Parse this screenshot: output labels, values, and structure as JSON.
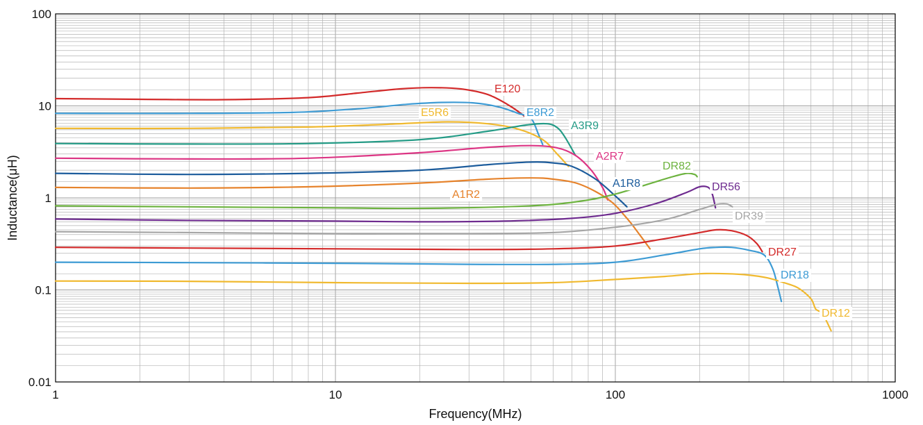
{
  "chart_data": {
    "type": "line",
    "title": "",
    "xlabel": "Frequency(MHz)",
    "ylabel": "Inductance(μH)",
    "x_scale": "log",
    "y_scale": "log",
    "xlim": [
      1,
      1000
    ],
    "ylim": [
      0.01,
      100
    ],
    "grid": true,
    "legend": "inline labels",
    "x_ticks": [
      {
        "value": 1,
        "label": "1"
      },
      {
        "value": 10,
        "label": "10"
      },
      {
        "value": 100,
        "label": "100"
      },
      {
        "value": 1000,
        "label": "1000"
      }
    ],
    "y_ticks": [
      {
        "value": 0.01,
        "label": "0.01"
      },
      {
        "value": 0.1,
        "label": "0.1"
      },
      {
        "value": 1,
        "label": "1"
      },
      {
        "value": 10,
        "label": "10"
      },
      {
        "value": 100,
        "label": "100"
      }
    ],
    "series": [
      {
        "name": "E120",
        "color": "#d32a2a",
        "points": [
          [
            1,
            12
          ],
          [
            2,
            11.8
          ],
          [
            4,
            11.7
          ],
          [
            8,
            12.3
          ],
          [
            12,
            13.8
          ],
          [
            17,
            15.3
          ],
          [
            22,
            15.8
          ],
          [
            28,
            15.3
          ],
          [
            35,
            13.3
          ],
          [
            42,
            10
          ],
          [
            48,
            7.5
          ]
        ]
      },
      {
        "name": "E8R2",
        "color": "#3d9bd4",
        "points": [
          [
            1,
            8.3
          ],
          [
            3,
            8.3
          ],
          [
            7,
            8.5
          ],
          [
            12,
            9.3
          ],
          [
            18,
            10.4
          ],
          [
            24,
            10.9
          ],
          [
            31,
            10.8
          ],
          [
            38,
            9.8
          ],
          [
            45,
            8.3
          ],
          [
            50,
            7.3
          ],
          [
            53,
            5
          ],
          [
            55,
            3.8
          ]
        ]
      },
      {
        "name": "E5R6",
        "color": "#f0b92f",
        "points": [
          [
            1,
            5.7
          ],
          [
            3,
            5.7
          ],
          [
            8,
            5.9
          ],
          [
            15,
            6.3
          ],
          [
            25,
            6.7
          ],
          [
            35,
            6.4
          ],
          [
            45,
            5.6
          ],
          [
            55,
            4.3
          ],
          [
            62,
            3
          ],
          [
            68,
            2.2
          ]
        ]
      },
      {
        "name": "A3R9",
        "color": "#249b86",
        "points": [
          [
            1,
            3.9
          ],
          [
            3,
            3.85
          ],
          [
            8,
            3.9
          ],
          [
            20,
            4.3
          ],
          [
            35,
            5.3
          ],
          [
            48,
            6.2
          ],
          [
            57,
            6.4
          ],
          [
            62,
            5.8
          ],
          [
            66,
            4.6
          ],
          [
            72,
            2.9
          ]
        ]
      },
      {
        "name": "A2R7",
        "color": "#dc3584",
        "points": [
          [
            1,
            2.7
          ],
          [
            3,
            2.65
          ],
          [
            8,
            2.7
          ],
          [
            20,
            3.1
          ],
          [
            35,
            3.55
          ],
          [
            50,
            3.7
          ],
          [
            62,
            3.5
          ],
          [
            72,
            2.9
          ],
          [
            82,
            2
          ],
          [
            90,
            1.3
          ],
          [
            94,
            0.95
          ]
        ]
      },
      {
        "name": "A1R8",
        "color": "#1c5c9c",
        "points": [
          [
            1,
            1.85
          ],
          [
            3,
            1.8
          ],
          [
            8,
            1.85
          ],
          [
            20,
            2.0
          ],
          [
            35,
            2.3
          ],
          [
            50,
            2.45
          ],
          [
            60,
            2.4
          ],
          [
            70,
            2.2
          ],
          [
            85,
            1.6
          ],
          [
            100,
            1.05
          ],
          [
            110,
            0.8
          ]
        ]
      },
      {
        "name": "A1R2",
        "color": "#e6832c",
        "points": [
          [
            1,
            1.3
          ],
          [
            3,
            1.28
          ],
          [
            8,
            1.32
          ],
          [
            20,
            1.45
          ],
          [
            35,
            1.6
          ],
          [
            50,
            1.65
          ],
          [
            60,
            1.6
          ],
          [
            75,
            1.4
          ],
          [
            95,
            0.95
          ],
          [
            110,
            0.6
          ],
          [
            122,
            0.4
          ],
          [
            133,
            0.28
          ]
        ]
      },
      {
        "name": "DR82",
        "color": "#6db33f",
        "points": [
          [
            1,
            0.82
          ],
          [
            3,
            0.8
          ],
          [
            10,
            0.78
          ],
          [
            20,
            0.77
          ],
          [
            40,
            0.8
          ],
          [
            60,
            0.85
          ],
          [
            80,
            0.95
          ],
          [
            100,
            1.1
          ],
          [
            130,
            1.4
          ],
          [
            160,
            1.7
          ],
          [
            180,
            1.85
          ],
          [
            192,
            1.8
          ],
          [
            196,
            1.7
          ]
        ]
      },
      {
        "name": "DR56",
        "color": "#6e2b8f",
        "points": [
          [
            1,
            0.59
          ],
          [
            3,
            0.57
          ],
          [
            10,
            0.56
          ],
          [
            20,
            0.55
          ],
          [
            40,
            0.56
          ],
          [
            70,
            0.6
          ],
          [
            100,
            0.68
          ],
          [
            140,
            0.87
          ],
          [
            180,
            1.15
          ],
          [
            200,
            1.32
          ],
          [
            215,
            1.3
          ],
          [
            222,
            1.1
          ],
          [
            228,
            0.78
          ]
        ]
      },
      {
        "name": "DR39",
        "color": "#a6a6a6",
        "points": [
          [
            1,
            0.43
          ],
          [
            3,
            0.42
          ],
          [
            10,
            0.41
          ],
          [
            30,
            0.41
          ],
          [
            60,
            0.42
          ],
          [
            100,
            0.48
          ],
          [
            150,
            0.58
          ],
          [
            200,
            0.75
          ],
          [
            230,
            0.85
          ],
          [
            250,
            0.86
          ],
          [
            262,
            0.8
          ]
        ]
      },
      {
        "name": "DR27",
        "color": "#d32a2a",
        "points": [
          [
            1,
            0.29
          ],
          [
            3,
            0.285
          ],
          [
            10,
            0.28
          ],
          [
            30,
            0.275
          ],
          [
            60,
            0.28
          ],
          [
            100,
            0.3
          ],
          [
            150,
            0.36
          ],
          [
            200,
            0.42
          ],
          [
            230,
            0.45
          ],
          [
            260,
            0.44
          ],
          [
            295,
            0.39
          ],
          [
            320,
            0.32
          ],
          [
            335,
            0.26
          ]
        ]
      },
      {
        "name": "DR18",
        "color": "#3d9bd4",
        "points": [
          [
            1,
            0.2
          ],
          [
            3,
            0.198
          ],
          [
            10,
            0.195
          ],
          [
            30,
            0.19
          ],
          [
            60,
            0.19
          ],
          [
            100,
            0.2
          ],
          [
            150,
            0.24
          ],
          [
            200,
            0.28
          ],
          [
            230,
            0.29
          ],
          [
            260,
            0.29
          ],
          [
            300,
            0.27
          ],
          [
            340,
            0.24
          ],
          [
            365,
            0.17
          ],
          [
            380,
            0.11
          ],
          [
            392,
            0.075
          ]
        ]
      },
      {
        "name": "DR12",
        "color": "#f0b92f",
        "points": [
          [
            1,
            0.125
          ],
          [
            3,
            0.124
          ],
          [
            10,
            0.12
          ],
          [
            30,
            0.118
          ],
          [
            60,
            0.12
          ],
          [
            100,
            0.13
          ],
          [
            150,
            0.14
          ],
          [
            200,
            0.15
          ],
          [
            250,
            0.15
          ],
          [
            300,
            0.145
          ],
          [
            350,
            0.135
          ],
          [
            400,
            0.12
          ],
          [
            450,
            0.105
          ],
          [
            500,
            0.08
          ],
          [
            520,
            0.062
          ],
          [
            550,
            0.055
          ],
          [
            590,
            0.036
          ]
        ]
      }
    ]
  }
}
